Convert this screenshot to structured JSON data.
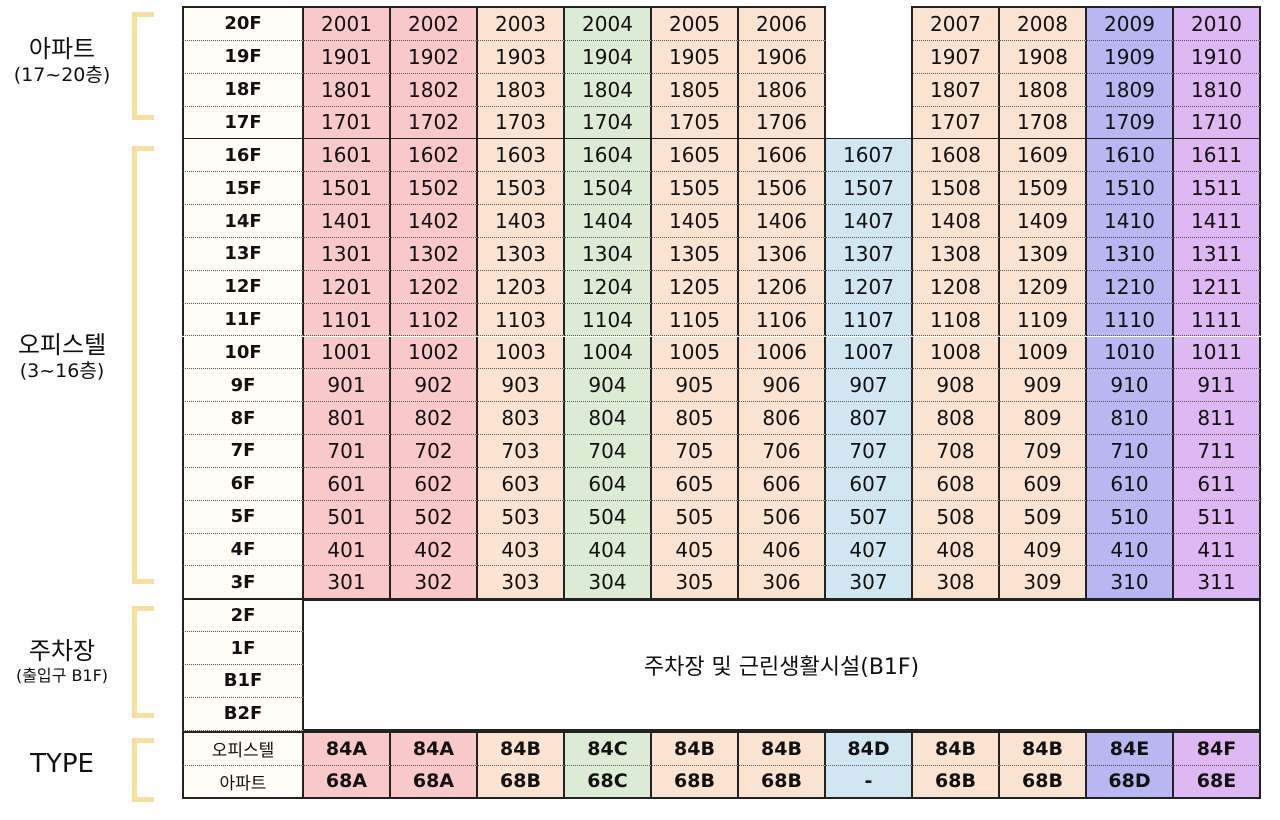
{
  "groups": {
    "apartment": {
      "title": "아파트",
      "sub": "(17~20층)"
    },
    "officetel": {
      "title": "오피스텔",
      "sub": "(3~16층)"
    },
    "parking": {
      "title": "주차장",
      "sub": "(출입구 B1F)"
    },
    "type": {
      "title": "TYPE"
    }
  },
  "colors": {
    "red": "#f9c9c9",
    "peach": "#fbe3d2",
    "green": "#dcecd4",
    "blue": "#d0e7f2",
    "purple": "#b9b7f2",
    "violet": "#deb8f2"
  },
  "column_colors": [
    "red",
    "red",
    "peach",
    "green",
    "peach",
    "peach",
    "blue",
    "peach",
    "peach",
    "purple",
    "violet"
  ],
  "upper_floors": [
    {
      "floor": "20F",
      "units": [
        "2001",
        "2002",
        "2003",
        "2004",
        "2005",
        "2006",
        "",
        "2007",
        "2008",
        "2009",
        "2010"
      ]
    },
    {
      "floor": "19F",
      "units": [
        "1901",
        "1902",
        "1903",
        "1904",
        "1905",
        "1906",
        "",
        "1907",
        "1908",
        "1909",
        "1910"
      ]
    },
    {
      "floor": "18F",
      "units": [
        "1801",
        "1802",
        "1803",
        "1804",
        "1805",
        "1806",
        "",
        "1807",
        "1808",
        "1809",
        "1810"
      ]
    },
    {
      "floor": "17F",
      "units": [
        "1701",
        "1702",
        "1703",
        "1704",
        "1705",
        "1706",
        "",
        "1707",
        "1708",
        "1709",
        "1710"
      ]
    }
  ],
  "office_floors": [
    {
      "floor": "16F",
      "units": [
        "1601",
        "1602",
        "1603",
        "1604",
        "1605",
        "1606",
        "1607",
        "1608",
        "1609",
        "1610",
        "1611"
      ]
    },
    {
      "floor": "15F",
      "units": [
        "1501",
        "1502",
        "1503",
        "1504",
        "1505",
        "1506",
        "1507",
        "1508",
        "1509",
        "1510",
        "1511"
      ]
    },
    {
      "floor": "14F",
      "units": [
        "1401",
        "1402",
        "1403",
        "1404",
        "1405",
        "1406",
        "1407",
        "1408",
        "1409",
        "1410",
        "1411"
      ]
    },
    {
      "floor": "13F",
      "units": [
        "1301",
        "1302",
        "1303",
        "1304",
        "1305",
        "1306",
        "1307",
        "1308",
        "1309",
        "1310",
        "1311"
      ]
    },
    {
      "floor": "12F",
      "units": [
        "1201",
        "1202",
        "1203",
        "1204",
        "1205",
        "1206",
        "1207",
        "1208",
        "1209",
        "1210",
        "1211"
      ]
    },
    {
      "floor": "11F",
      "units": [
        "1101",
        "1102",
        "1103",
        "1104",
        "1105",
        "1106",
        "1107",
        "1108",
        "1109",
        "1110",
        "1111"
      ]
    },
    {
      "floor": "10F",
      "units": [
        "1001",
        "1002",
        "1003",
        "1004",
        "1005",
        "1006",
        "1007",
        "1008",
        "1009",
        "1010",
        "1011"
      ]
    },
    {
      "floor": "9F",
      "units": [
        "901",
        "902",
        "903",
        "904",
        "905",
        "906",
        "907",
        "908",
        "909",
        "910",
        "911"
      ]
    },
    {
      "floor": "8F",
      "units": [
        "801",
        "802",
        "803",
        "804",
        "805",
        "806",
        "807",
        "808",
        "809",
        "810",
        "811"
      ]
    },
    {
      "floor": "7F",
      "units": [
        "701",
        "702",
        "703",
        "704",
        "705",
        "706",
        "707",
        "708",
        "709",
        "710",
        "711"
      ]
    },
    {
      "floor": "6F",
      "units": [
        "601",
        "602",
        "603",
        "604",
        "605",
        "606",
        "607",
        "608",
        "609",
        "610",
        "611"
      ]
    },
    {
      "floor": "5F",
      "units": [
        "501",
        "502",
        "503",
        "504",
        "505",
        "506",
        "507",
        "508",
        "509",
        "510",
        "511"
      ]
    },
    {
      "floor": "4F",
      "units": [
        "401",
        "402",
        "403",
        "404",
        "405",
        "406",
        "407",
        "408",
        "409",
        "410",
        "411"
      ]
    },
    {
      "floor": "3F",
      "units": [
        "301",
        "302",
        "303",
        "304",
        "305",
        "306",
        "307",
        "308",
        "309",
        "310",
        "311"
      ]
    }
  ],
  "parking_floors": [
    "2F",
    "1F",
    "B1F",
    "B2F"
  ],
  "parking_label": "주차장 및 근린생활시설(B1F)",
  "type_rows": [
    {
      "label": "오피스텔",
      "values": [
        "84A",
        "84A",
        "84B",
        "84C",
        "84B",
        "84B",
        "84D",
        "84B",
        "84B",
        "84E",
        "84F"
      ]
    },
    {
      "label": "아파트",
      "values": [
        "68A",
        "68A",
        "68B",
        "68C",
        "68B",
        "68B",
        "-",
        "68B",
        "68B",
        "68D",
        "68E"
      ]
    }
  ]
}
